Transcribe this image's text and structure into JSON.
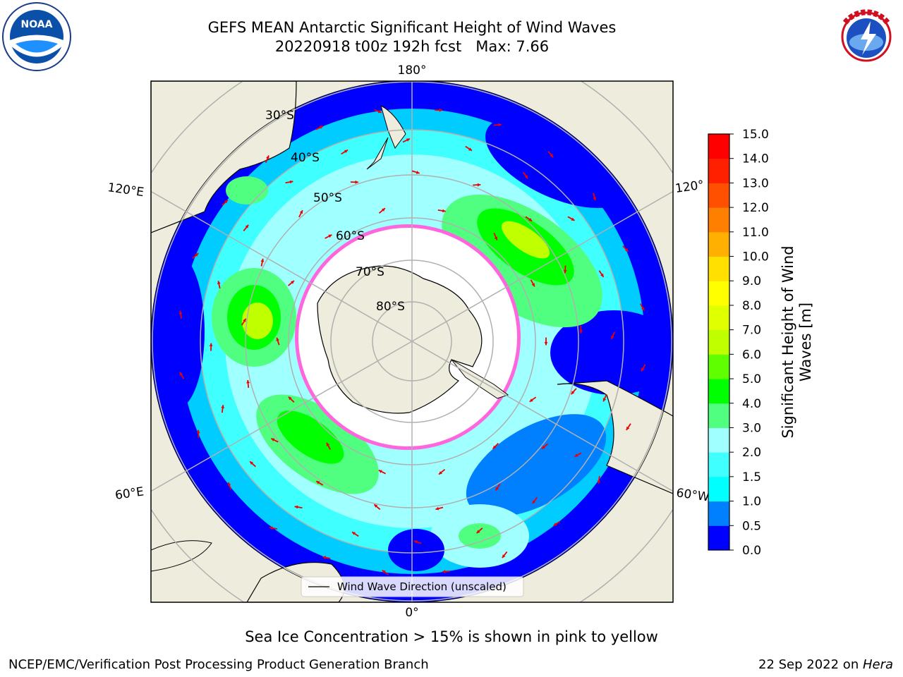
{
  "title": {
    "line1": "GEFS MEAN Antarctic Significant Height of Wind Waves",
    "line2": "20220918 t00z 192h fcst   Max: 7.66"
  },
  "map": {
    "projection": "south-polar-stereographic",
    "lon_labels": [
      "180°",
      "120°E",
      "120°",
      "60°E",
      "60°W",
      "0°"
    ],
    "lat_labels": [
      "30°S",
      "40°S",
      "50°S",
      "60°S",
      "70°S",
      "80°S"
    ],
    "legend_label": "Wind Wave Direction (unscaled)"
  },
  "colorbar": {
    "label_line1": "Significant Height of Wind",
    "label_line2": "Waves [m]",
    "ticks": [
      "0.0",
      "0.5",
      "1.0",
      "1.5",
      "2.0",
      "3.0",
      "4.0",
      "5.0",
      "6.0",
      "7.0",
      "8.0",
      "9.0",
      "10.0",
      "11.0",
      "12.0",
      "13.0",
      "14.0",
      "15.0"
    ],
    "colors": [
      "#0000ff",
      "#0080ff",
      "#00ffff",
      "#40ffff",
      "#a0ffff",
      "#50ff80",
      "#00ff00",
      "#60ff00",
      "#c0ff00",
      "#e0ff00",
      "#ffff00",
      "#ffe000",
      "#ffb000",
      "#ff8000",
      "#ff5000",
      "#ff2000",
      "#ff0000"
    ]
  },
  "caption": "Sea Ice Concentration > 15% is shown in pink to yellow",
  "footer": {
    "left": "NCEP/EMC/Verification Post Processing Product Generation Branch",
    "right_prefix": "22 Sep 2022 on ",
    "right_host": "Hera"
  },
  "logos": {
    "left": "NOAA",
    "right": "NATIONAL WEATHER SERVICE"
  }
}
